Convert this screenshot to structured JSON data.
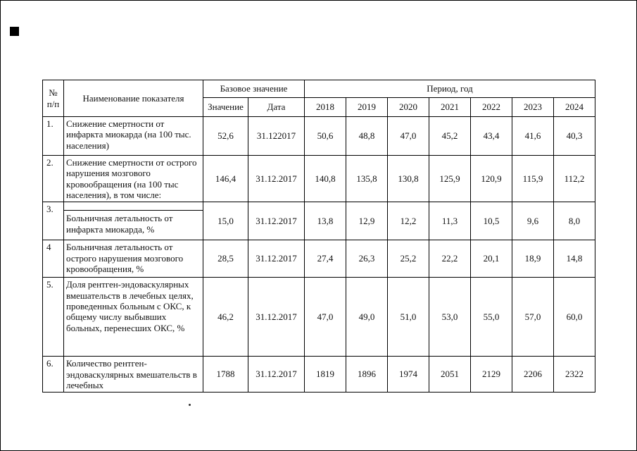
{
  "artifacts": {
    "corner_square": "black-square",
    "small_dot": "speck"
  },
  "table": {
    "header": {
      "num_line1": "№",
      "num_line2": "п/п",
      "name": "Наименование показателя",
      "base": "Базовое значение",
      "base_value": "Значение",
      "base_date": "Дата",
      "period": "Период, год",
      "years": [
        "2018",
        "2019",
        "2020",
        "2021",
        "2022",
        "2023",
        "2024"
      ]
    },
    "rows": [
      {
        "num": "1.",
        "name": "Снижение смертности от инфаркта миокарда (на 100 тыс. населения)",
        "value": "52,6",
        "date": "31.122017",
        "years": [
          "50,6",
          "48,8",
          "47,0",
          "45,2",
          "43,4",
          "41,6",
          "40,3"
        ],
        "gap_above": false
      },
      {
        "num": "2.",
        "name": "Снижение смертности от острого нарушения мозгового кровообращения (на 100 тыс населения), в том числе:",
        "value": "146,4",
        "date": "31.12.2017",
        "years": [
          "140,8",
          "135,8",
          "130,8",
          "125,9",
          "120,9",
          "115,9",
          "112,2"
        ],
        "gap_above": false
      },
      {
        "num": "3.",
        "name": "Больничная летальность от инфаркта миокарда, %",
        "value": "15,0",
        "date": "31.12.2017",
        "years": [
          "13,8",
          "12,9",
          "12,2",
          "11,3",
          "10,5",
          "9,6",
          "8,0"
        ],
        "gap_above": true
      },
      {
        "num": "4",
        "name": "Больничная летальность от острого нарушения мозгового кровообращения, %",
        "value": "28,5",
        "date": "31.12.2017",
        "years": [
          "27,4",
          "26,3",
          "25,2",
          "22,2",
          "20,1",
          "18,9",
          "14,8"
        ],
        "gap_above": false
      },
      {
        "num": "5.",
        "name": "Доля рентген-эндоваскулярных вмешательств в лечебных целях, проведенных больным с ОКС, к общему числу выбывших больных, перенесших ОКС, %",
        "value": "46,2",
        "date": "31.12.2017",
        "years": [
          "47,0",
          "49,0",
          "51,0",
          "53,0",
          "55,0",
          "57,0",
          "60,0"
        ],
        "gap_above": false
      },
      {
        "num": "6.",
        "name": "Количество рентген-эндоваскулярных вмешательств в лечебных",
        "value": "1788",
        "date": "31.12.2017",
        "years": [
          "1819",
          "1896",
          "1974",
          "2051",
          "2129",
          "2206",
          "2322"
        ],
        "gap_above": false
      }
    ]
  }
}
